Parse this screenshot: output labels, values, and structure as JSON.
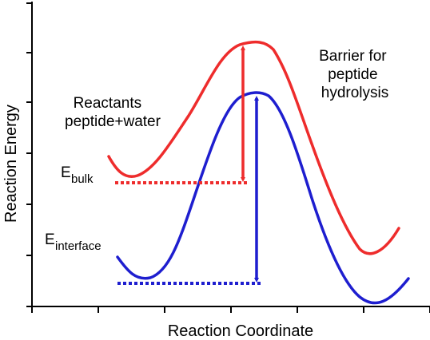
{
  "diagram": {
    "axis_x_label": "Reaction Coordinate",
    "axis_y_label": "Reaction Energy",
    "reactants_line1": "Reactants",
    "reactants_line2": "peptide+water",
    "barrier_line1": "Barrier for",
    "barrier_line2": "peptide",
    "barrier_line3": "hydrolysis",
    "e_bulk_main": "E",
    "e_bulk_sub": "bulk",
    "e_interface_main": "E",
    "e_interface_sub": "interface"
  },
  "colors": {
    "bulk": "#ee2c2c",
    "interface": "#1e1ecf",
    "axis": "#000000"
  }
}
